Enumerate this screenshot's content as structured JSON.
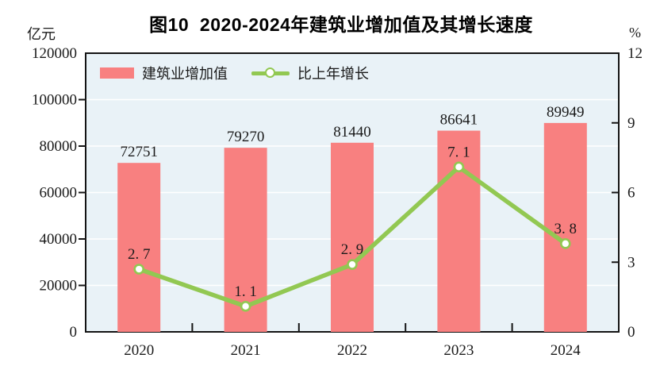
{
  "title": "图10  2020-2024年建筑业增加值及其增长速度",
  "left_axis": {
    "unit": "亿元",
    "tick_values": [
      0,
      20000,
      40000,
      60000,
      80000,
      100000,
      120000
    ],
    "tick_labels": [
      "0",
      "20000",
      "40000",
      "60000",
      "80000",
      "100000",
      "120000"
    ]
  },
  "right_axis": {
    "unit": "%",
    "tick_values": [
      0,
      3,
      6,
      9,
      12
    ],
    "tick_labels": [
      "0",
      "3",
      "6",
      "9",
      "12"
    ]
  },
  "legend": {
    "bar_label": "建筑业增加值",
    "line_label": "比上年增长"
  },
  "colors": {
    "bar": "#F88080",
    "line": "#92C852",
    "marker_fill": "#FFFFFF",
    "plot_bg": "#E9F2F7",
    "grid": "#FFFFFF",
    "axis": "#141414",
    "text": "#1A1A1A",
    "title": "#000000"
  },
  "chart_data": {
    "type": "bar+line",
    "title": "图10  2020-2024年建筑业增加值及其增长速度",
    "categories": [
      "2020",
      "2021",
      "2022",
      "2023",
      "2024"
    ],
    "series": [
      {
        "name": "建筑业增加值",
        "type": "bar",
        "axis": "left",
        "values": [
          72751,
          79270,
          81440,
          86641,
          89949
        ],
        "labels": [
          "72751",
          "79270",
          "81440",
          "86641",
          "89949"
        ]
      },
      {
        "name": "比上年增长",
        "type": "line",
        "axis": "right",
        "values": [
          2.7,
          1.1,
          2.9,
          7.1,
          3.8
        ],
        "labels": [
          "2. 7",
          "1. 1",
          "2. 9",
          "7. 1",
          "3. 8"
        ]
      }
    ],
    "left_ylabel": "亿元",
    "right_ylabel": "%",
    "left_ylim": [
      0,
      120000
    ],
    "right_ylim": [
      0,
      12
    ],
    "grid": true,
    "gridline_interval_left": 20000,
    "legend_position": "top-left-inside"
  }
}
